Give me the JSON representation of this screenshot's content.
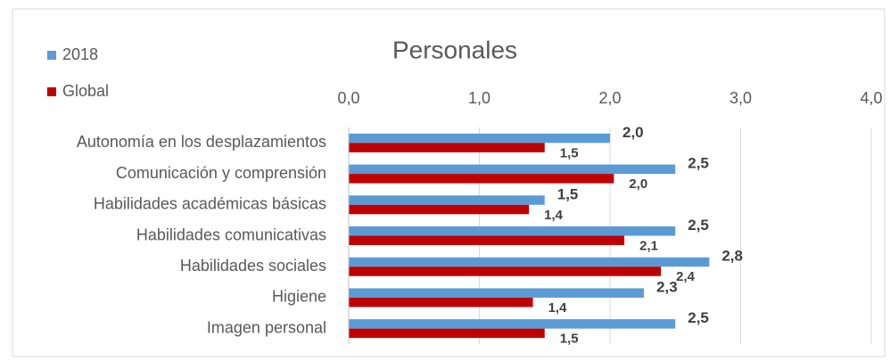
{
  "chart_data": {
    "type": "hbar",
    "title": "Personales",
    "categories": [
      "Autonomía en los desplazamientos",
      "Comunicación y  comprensión",
      "Habilidades académicas básicas",
      "Habilidades comunicativas",
      "Habilidades sociales",
      "Higiene",
      "Imagen personal"
    ],
    "series": [
      {
        "name": "2018",
        "color": "#5b9bd5",
        "values": [
          2.0,
          2.5,
          1.5,
          2.5,
          2.76,
          2.26,
          2.5
        ],
        "value_labels": [
          "2,0",
          "2,5",
          "1,5",
          "2,5",
          "2,8",
          "2,3",
          "2,5"
        ]
      },
      {
        "name": "Global",
        "color": "#c00000",
        "values": [
          1.5,
          2.03,
          1.38,
          2.11,
          2.39,
          1.41,
          1.5
        ],
        "value_labels": [
          "1,5",
          "2,0",
          "1,4",
          "2,1",
          "2,4",
          "1,4",
          "1,5"
        ]
      }
    ],
    "xlim": [
      0,
      4
    ],
    "xticks": [
      {
        "value": 0,
        "label": "0,0"
      },
      {
        "value": 1,
        "label": "1,0"
      },
      {
        "value": 2,
        "label": "2,0"
      },
      {
        "value": 3,
        "label": "3,0"
      },
      {
        "value": 4,
        "label": "4,0"
      }
    ],
    "grid": true,
    "legend": "top-left"
  }
}
